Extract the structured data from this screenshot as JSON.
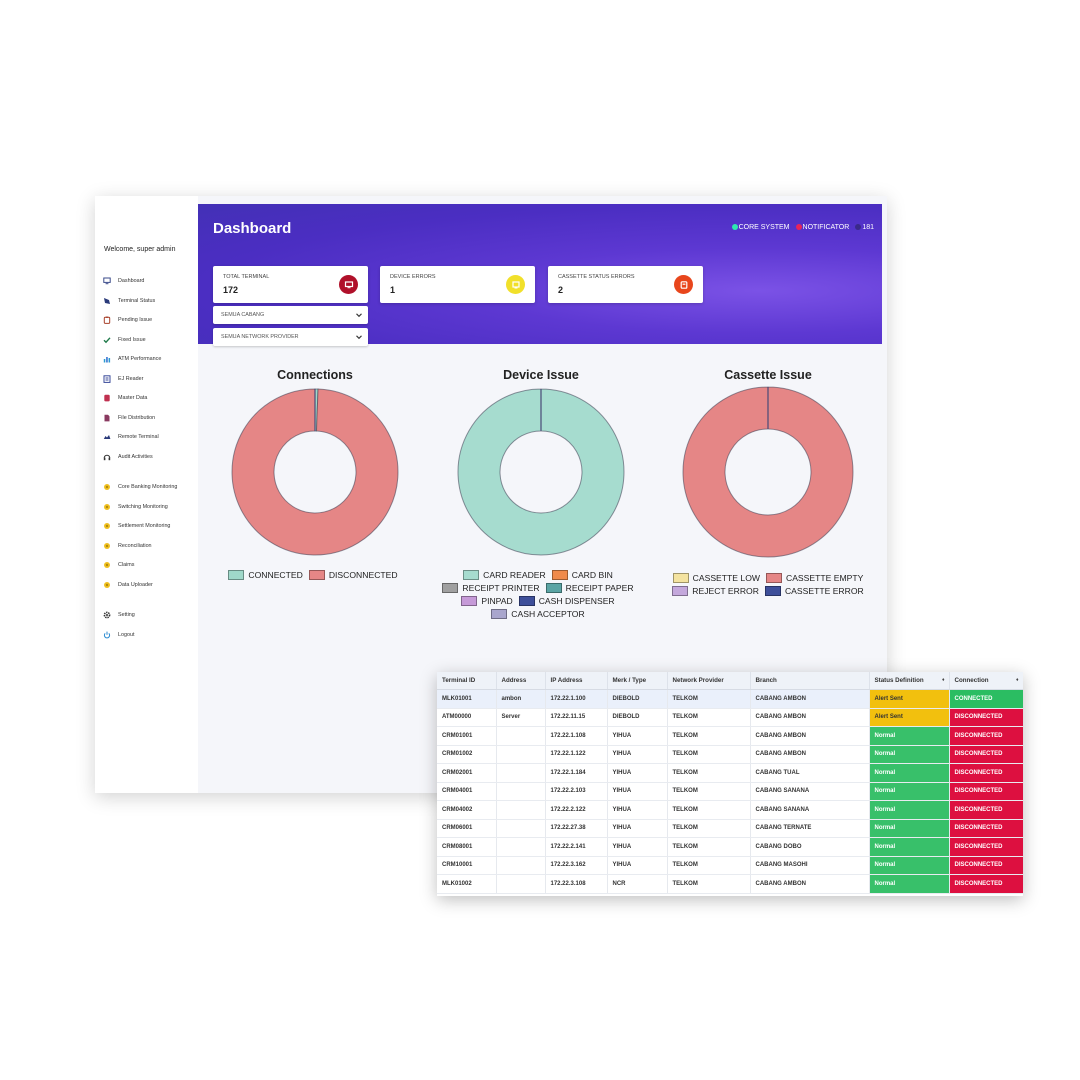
{
  "sidebar": {
    "welcome": "Welcome, super admin",
    "items": [
      {
        "label": "Dashboard",
        "icon": "monitor-icon"
      },
      {
        "label": "Terminal Status",
        "icon": "terminal-icon"
      },
      {
        "label": "Pending Issue",
        "icon": "clipboard-icon"
      },
      {
        "label": "Fixed Issue",
        "icon": "check-icon"
      },
      {
        "label": "ATM Performance",
        "icon": "bar-chart-icon"
      },
      {
        "label": "EJ Reader",
        "icon": "reader-icon"
      },
      {
        "label": "Master Data",
        "icon": "database-icon"
      },
      {
        "label": "File Distribution",
        "icon": "file-icon"
      },
      {
        "label": "Remote Terminal",
        "icon": "remote-icon"
      },
      {
        "label": "Audit Activities",
        "icon": "headset-icon"
      },
      {
        "label": "Core Banking Monitoring",
        "icon": "circle-icon"
      },
      {
        "label": "Switching Monitoring",
        "icon": "circle-icon"
      },
      {
        "label": "Settlement Monitoring",
        "icon": "circle-icon"
      },
      {
        "label": "Reconciliation",
        "icon": "circle-icon"
      },
      {
        "label": "Claims",
        "icon": "circle-icon"
      },
      {
        "label": "Data Uploader",
        "icon": "circle-icon"
      },
      {
        "label": "Setting",
        "icon": "gear-icon"
      },
      {
        "label": "Logout",
        "icon": "power-icon"
      }
    ]
  },
  "header": {
    "title": "Dashboard",
    "status": [
      {
        "label": "CORE SYSTEM",
        "color": "#2ee8b0"
      },
      {
        "label": "NOTIFICATOR",
        "color": "#e8245a"
      },
      {
        "label": "181",
        "color": "#3a2a8a"
      }
    ]
  },
  "stats": [
    {
      "label": "TOTAL TERMINAL",
      "value": "172",
      "icon": "monitor-icon",
      "color": "#b0102a"
    },
    {
      "label": "DEVICE ERRORS",
      "value": "1",
      "icon": "device-icon",
      "color": "#f1e02a"
    },
    {
      "label": "CASSETTE STATUS ERRORS",
      "value": "2",
      "icon": "cassette-icon",
      "color": "#e8461c"
    }
  ],
  "filters": {
    "branch": "SEMUA CABANG",
    "provider": "SEMUA NETWORK PROVIDER"
  },
  "chart_data": [
    {
      "type": "pie",
      "title": "Connections",
      "categories": [
        "CONNECTED",
        "DISCONNECTED"
      ],
      "values": [
        1,
        171
      ],
      "colors": [
        "#9fd8c9",
        "#e58686"
      ]
    },
    {
      "type": "pie",
      "title": "Device Issue",
      "categories": [
        "CARD READER",
        "CARD BIN",
        "RECEIPT PRINTER",
        "RECEIPT PAPER",
        "PINPAD",
        "CASH DISPENSER",
        "CASH ACCEPTOR"
      ],
      "values": [
        1,
        0,
        0,
        0,
        0,
        0,
        0
      ],
      "colors": [
        "#a6dccf",
        "#f08a4b",
        "#a0a0a0",
        "#5aa4a4",
        "#c69ad8",
        "#3e4f9a",
        "#a9a6cd"
      ]
    },
    {
      "type": "pie",
      "title": "Cassette Issue",
      "categories": [
        "CASSETTE LOW",
        "CASSETTE EMPTY",
        "REJECT ERROR",
        "CASSETTE ERROR"
      ],
      "values": [
        0,
        2,
        0,
        0
      ],
      "colors": [
        "#f4e3a0",
        "#e58686",
        "#c4a8dc",
        "#3e4f9a"
      ]
    }
  ],
  "table": {
    "columns": [
      "Terminal ID",
      "Address",
      "IP Address",
      "Merk / Type",
      "Network Provider",
      "Branch",
      "Status Definition",
      "Connection"
    ],
    "rows": [
      [
        "MLK01001",
        "ambon",
        "172.22.1.100",
        "DIEBOLD",
        "TELKOM",
        "CABANG AMBON",
        "Alert Sent",
        "CONNECTED"
      ],
      [
        "ATM00000",
        "Server",
        "172.22.11.15",
        "DIEBOLD",
        "TELKOM",
        "CABANG AMBON",
        "Alert Sent",
        "DISCONNECTED"
      ],
      [
        "CRM01001",
        "",
        "172.22.1.108",
        "YIHUA",
        "TELKOM",
        "CABANG AMBON",
        "Normal",
        "DISCONNECTED"
      ],
      [
        "CRM01002",
        "",
        "172.22.1.122",
        "YIHUA",
        "TELKOM",
        "CABANG AMBON",
        "Normal",
        "DISCONNECTED"
      ],
      [
        "CRM02001",
        "",
        "172.22.1.184",
        "YIHUA",
        "TELKOM",
        "CABANG TUAL",
        "Normal",
        "DISCONNECTED"
      ],
      [
        "CRM04001",
        "",
        "172.22.2.103",
        "YIHUA",
        "TELKOM",
        "CABANG SANANA",
        "Normal",
        "DISCONNECTED"
      ],
      [
        "CRM04002",
        "",
        "172.22.2.122",
        "YIHUA",
        "TELKOM",
        "CABANG SANANA",
        "Normal",
        "DISCONNECTED"
      ],
      [
        "CRM06001",
        "",
        "172.22.27.38",
        "YIHUA",
        "TELKOM",
        "CABANG TERNATE",
        "Normal",
        "DISCONNECTED"
      ],
      [
        "CRM08001",
        "",
        "172.22.2.141",
        "YIHUA",
        "TELKOM",
        "CABANG DOBO",
        "Normal",
        "DISCONNECTED"
      ],
      [
        "CRM10001",
        "",
        "172.22.3.162",
        "YIHUA",
        "TELKOM",
        "CABANG MASOHI",
        "Normal",
        "DISCONNECTED"
      ],
      [
        "MLK01002",
        "",
        "172.22.3.108",
        "NCR",
        "TELKOM",
        "CABANG AMBON",
        "Normal",
        "DISCONNECTED"
      ]
    ]
  }
}
